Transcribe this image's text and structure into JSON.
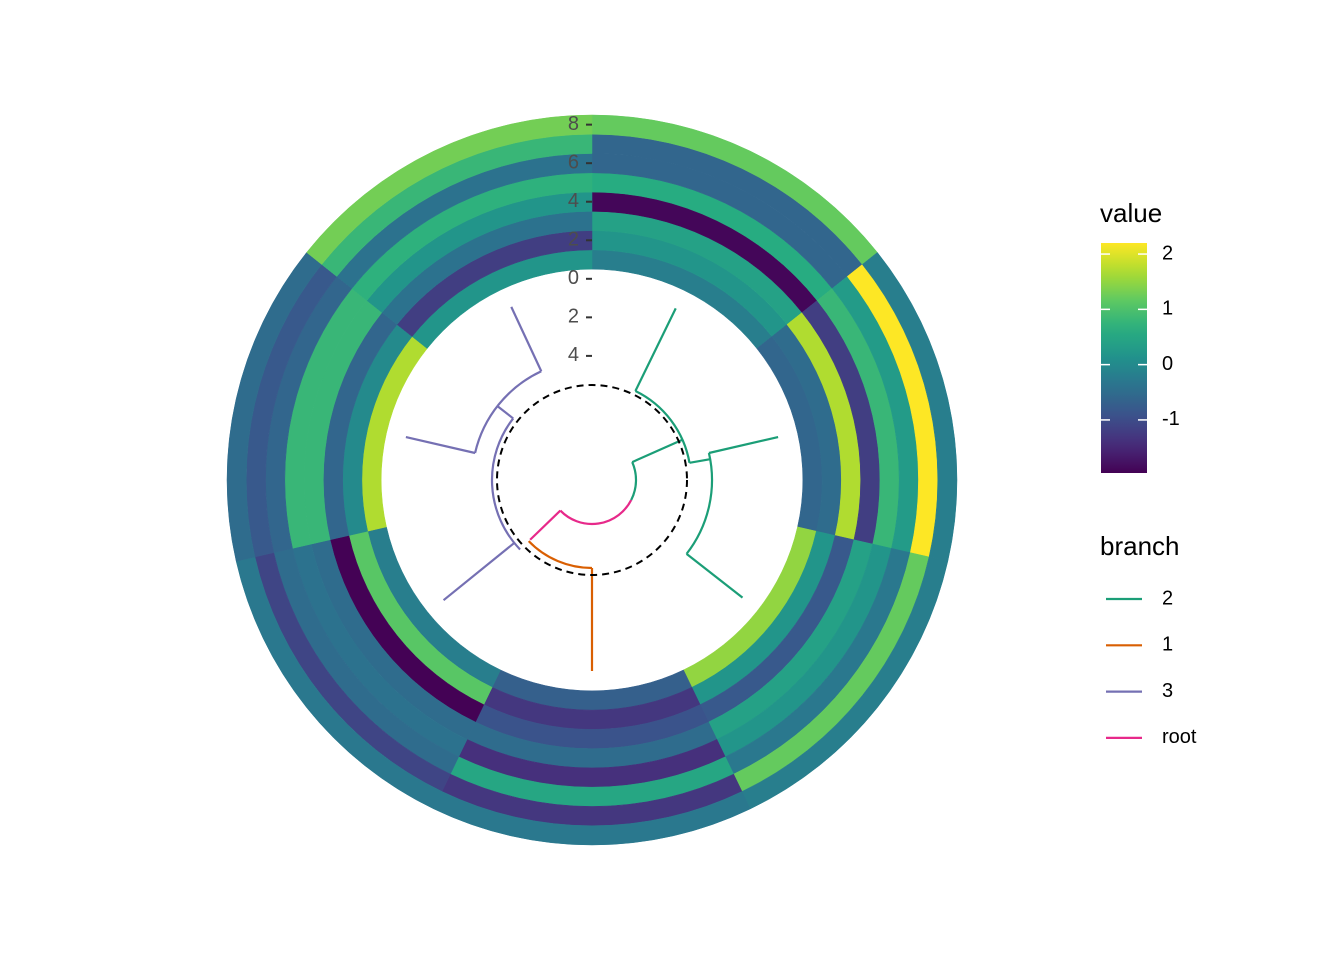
{
  "chart_data": {
    "type": "polar-heatmap",
    "y": [
      1,
      2,
      3,
      4,
      5,
      6,
      7,
      8
    ],
    "values": [
      [
        -0.2,
        0.2,
        0.4,
        -1.9,
        0.6,
        -0.6,
        -0.6,
        1.2
      ],
      [
        -0.6,
        -0.5,
        1.7,
        -1.2,
        0.8,
        0.3,
        2.2,
        -0.2
      ],
      [
        1.5,
        0.2,
        -0.8,
        0.4,
        0.2,
        -0.3,
        1.2,
        -0.2
      ],
      [
        -0.7,
        -1.3,
        -0.9,
        -0.5,
        -1.4,
        0.5,
        -1.3,
        -0.3
      ],
      [
        -0.2,
        1.1,
        -1.95,
        -0.5,
        -0.4,
        -0.5,
        -1.1,
        -0.3
      ],
      [
        1.7,
        0.0,
        -0.6,
        0.8,
        0.8,
        -0.6,
        -0.8,
        -0.5
      ],
      [
        0.2,
        -1.2,
        -0.4,
        0.2,
        0.7,
        -0.4,
        0.8,
        1.3
      ]
    ],
    "ylim": [
      -10.44,
      8.5
    ],
    "yticks": [
      8,
      6,
      4,
      2,
      0,
      {
        "value": -2,
        "label": "2"
      },
      {
        "value": -4,
        "label": "4"
      }
    ],
    "colormap": "viridis",
    "colorbar": {
      "title": "value",
      "lim": [
        -1.96,
        2.2
      ],
      "ticks": [
        2,
        1,
        0,
        -1
      ]
    },
    "legend_title": "branch",
    "series": [
      {
        "name": "2",
        "color": "#1b9e77"
      },
      {
        "name": "1",
        "color": "#d95f02"
      },
      {
        "name": "3",
        "color": "#7570b3"
      },
      {
        "name": "root",
        "color": "#e7298a"
      }
    ]
  }
}
